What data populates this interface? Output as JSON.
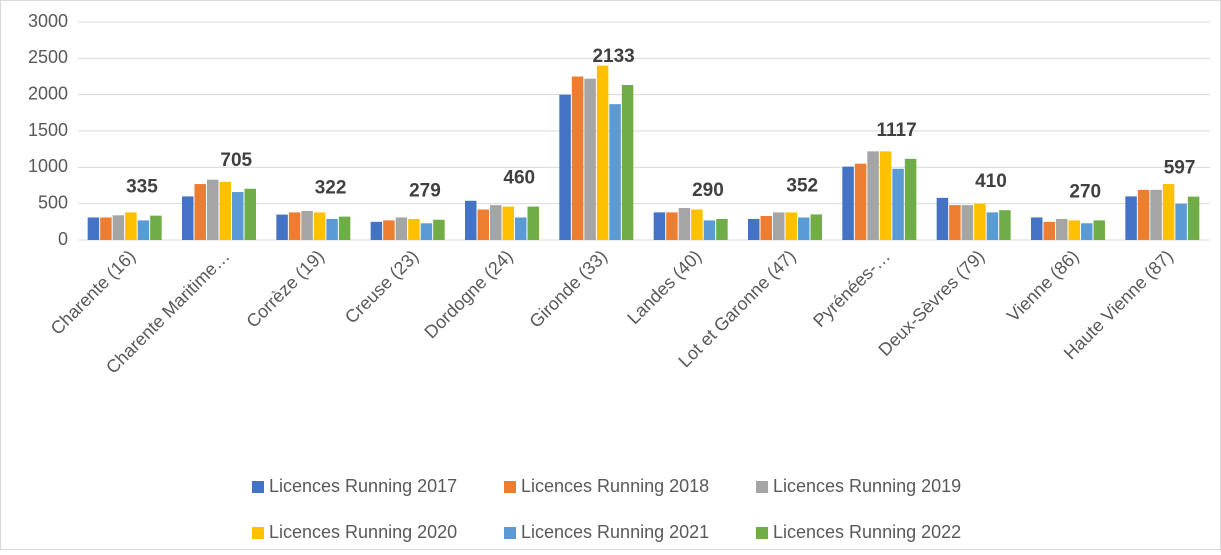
{
  "chart_data": {
    "type": "bar",
    "categories": [
      "Charente (16)",
      "Charente Maritime…",
      "Corrèze (19)",
      "Creuse (23)",
      "Dordogne (24)",
      "Gironde (33)",
      "Landes (40)",
      "Lot et Garonne (47)",
      "Pyrénées-…",
      "Deux-Sèvres (79)",
      "Vienne (86)",
      "Haute Vienne (87)"
    ],
    "series": [
      {
        "name": "Licences Running 2017",
        "color": "#4472c4",
        "values": [
          310,
          600,
          350,
          250,
          540,
          2000,
          380,
          290,
          1010,
          580,
          310,
          600
        ]
      },
      {
        "name": "Licences Running 2018",
        "color": "#ed7d31",
        "values": [
          310,
          770,
          380,
          270,
          420,
          2250,
          380,
          330,
          1050,
          480,
          250,
          690
        ]
      },
      {
        "name": "Licences Running 2019",
        "color": "#a5a5a5",
        "values": [
          340,
          830,
          400,
          310,
          480,
          2220,
          440,
          380,
          1220,
          480,
          290,
          690
        ]
      },
      {
        "name": "Licences Running 2020",
        "color": "#ffc000",
        "values": [
          380,
          800,
          380,
          290,
          460,
          2400,
          420,
          380,
          1220,
          500,
          270,
          770
        ]
      },
      {
        "name": "Licences Running 2021",
        "color": "#5b9bd5",
        "values": [
          270,
          660,
          290,
          230,
          310,
          1870,
          270,
          310,
          980,
          380,
          230,
          500
        ]
      },
      {
        "name": "Licences Running 2022",
        "color": "#70ad47",
        "values": [
          335,
          705,
          322,
          279,
          460,
          2133,
          290,
          352,
          1117,
          410,
          270,
          597
        ],
        "show_labels": true
      }
    ],
    "ylim": [
      0,
      3000
    ],
    "yticks": [
      0,
      500,
      1000,
      1500,
      2000,
      2500,
      3000
    ],
    "grid": true,
    "legend": "bottom"
  }
}
